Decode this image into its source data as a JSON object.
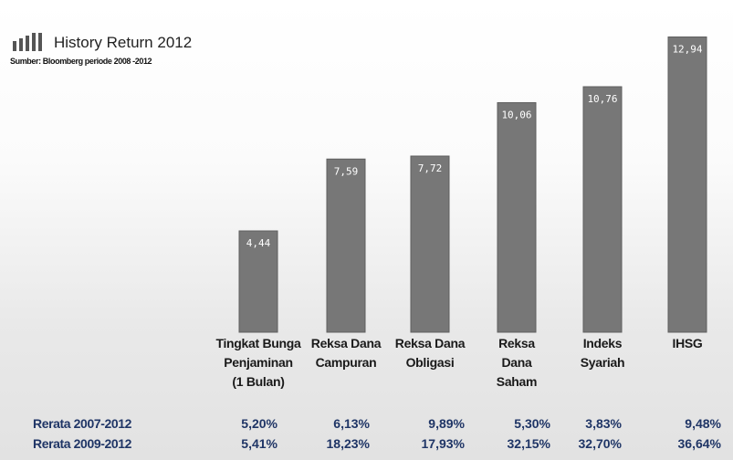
{
  "header": {
    "title": "History Return 2012",
    "subtitle": "Sumber: Bloomberg periode 2008 -2012",
    "icon": "bar-chart-icon"
  },
  "chart_data": {
    "type": "bar",
    "title": "History Return 2012",
    "subtitle": "Sumber: Bloomberg periode 2008 -2012",
    "categories": [
      [
        "Tingkat Bunga",
        "Penjaminan",
        "(1 Bulan)"
      ],
      [
        "Reksa Dana",
        "Campuran"
      ],
      [
        "Reksa Dana",
        "Obligasi"
      ],
      [
        "Reksa",
        "Dana",
        "Saham"
      ],
      [
        "Indeks",
        "Syariah"
      ],
      [
        "IHSG"
      ]
    ],
    "values": [
      4.44,
      7.59,
      7.72,
      10.06,
      10.76,
      12.94
    ],
    "value_labels": [
      "4,44",
      "7,59",
      "7,72",
      "10,06",
      "10,76",
      "12,94"
    ],
    "ylim": [
      0,
      13.6
    ],
    "bar_color": "#777777",
    "grid": false,
    "legend": "none"
  },
  "table": {
    "rows": [
      {
        "label": "Rerata 2007-2012",
        "values": [
          "5,20%",
          "6,13%",
          "9,89%",
          "5,30%",
          "3,83%",
          "9,48%"
        ]
      },
      {
        "label": "Rerata 2009-2012",
        "values": [
          "5,41%",
          "18,23%",
          "17,93%",
          "32,15%",
          "32,70%",
          "36,64%"
        ]
      }
    ],
    "text_color": "#1f3566"
  }
}
